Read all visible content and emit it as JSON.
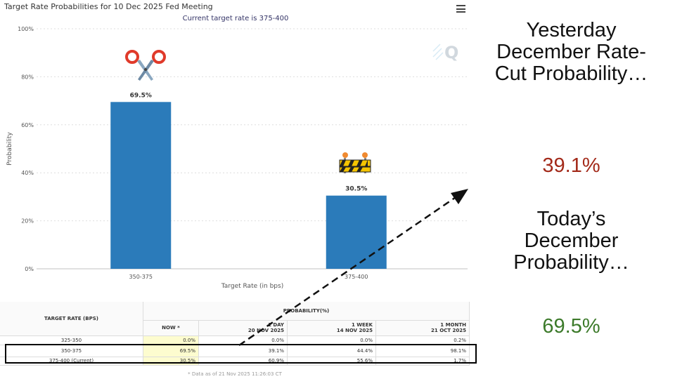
{
  "chart_data": {
    "type": "bar",
    "title": "Target Rate Probabilities for 10 Dec 2025 Fed Meeting",
    "subtitle": "Current target rate is 375-400",
    "categories": [
      "350-375",
      "375-400"
    ],
    "values": [
      69.5,
      30.5
    ],
    "data_labels": [
      "69.5%",
      "30.5%"
    ],
    "xlabel": "Target Rate (in bps)",
    "ylabel": "Probability",
    "ylim": [
      0,
      100
    ],
    "yticks": [
      "0%",
      "20%",
      "40%",
      "60%",
      "80%",
      "100%"
    ],
    "bar_color": "#2b7bba",
    "grid": true
  },
  "table": {
    "header_rate": "TARGET RATE (BPS)",
    "header_prob": "PROBABILITY(%)",
    "columns": [
      {
        "label": "NOW *",
        "date": ""
      },
      {
        "label": "1 DAY",
        "date": "20 NOV 2025"
      },
      {
        "label": "1 WEEK",
        "date": "14 NOV 2025"
      },
      {
        "label": "1 MONTH",
        "date": "21 OCT 2025"
      }
    ],
    "rows": [
      {
        "rate": "325-350",
        "now": "0.0%",
        "day": "0.0%",
        "week": "0.0%",
        "month": "0.2%"
      },
      {
        "rate": "350-375",
        "now": "69.5%",
        "day": "39.1%",
        "week": "44.4%",
        "month": "98.1%"
      },
      {
        "rate": "375-400 (Current)",
        "now": "30.5%",
        "day": "60.9%",
        "week": "55.6%",
        "month": "1.7%"
      }
    ],
    "footnote": "* Data as of 21 Nov 2025 11:26:03 CT"
  },
  "annotation": {
    "yesterday_label": "Yesterday December Rate-Cut Probability…",
    "yesterday_value": "39.1%",
    "today_label": "Today’s December Probability…",
    "today_value": "69.5%",
    "red_color": "#a32a1a",
    "green_color": "#3c7a2a"
  },
  "icons": [
    "scissors-icon",
    "roadblock-icon",
    "menu-icon",
    "q-logo"
  ]
}
